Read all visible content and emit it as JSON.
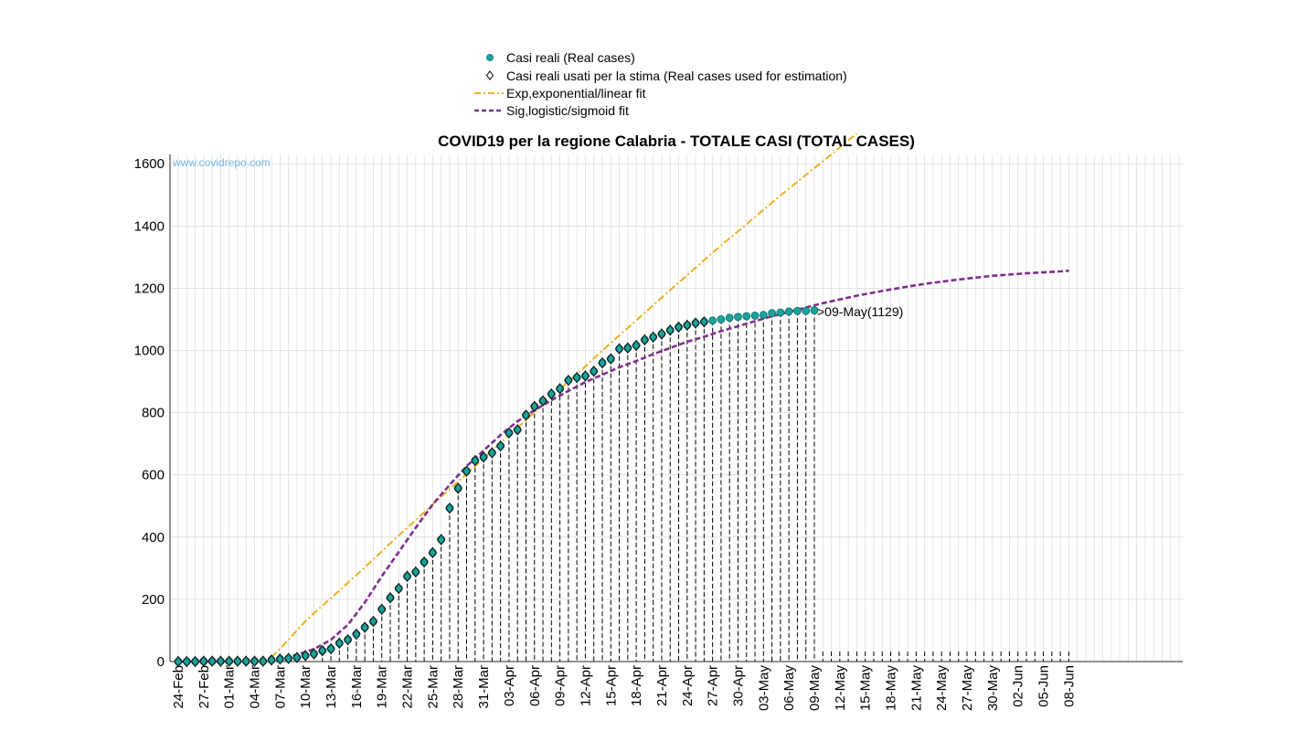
{
  "chart_data": {
    "type": "line",
    "title": "COVID19 per la regione Calabria - TOTALE CASI (TOTAL CASES)",
    "watermark": "www.covidrepo.com",
    "xlabel": "",
    "ylabel": "",
    "ylim": [
      0,
      1630
    ],
    "yticks": [
      0,
      200,
      400,
      600,
      800,
      1000,
      1200,
      1400,
      1600
    ],
    "grid": true,
    "legend_position": "top-center",
    "x_start_date": "24-Feb",
    "x_tick_labels": [
      "24-Feb",
      "27-Feb",
      "01-Mar",
      "04-Mar",
      "07-Mar",
      "10-Mar",
      "13-Mar",
      "16-Mar",
      "19-Mar",
      "22-Mar",
      "25-Mar",
      "28-Mar",
      "31-Mar",
      "03-Apr",
      "06-Apr",
      "09-Apr",
      "12-Apr",
      "15-Apr",
      "18-Apr",
      "21-Apr",
      "24-Apr",
      "27-Apr",
      "30-Apr",
      "03-May",
      "06-May",
      "09-May",
      "12-May",
      "15-May",
      "18-May",
      "21-May",
      "24-May",
      "27-May",
      "30-May",
      "02-Jun",
      "05-Jun",
      "08-Jun"
    ],
    "annotation": ">09-May(1129)",
    "colors": {
      "real": "#1aa39b",
      "sig": "#7e2f8e",
      "exp": "#edb120",
      "grid": "#dcdcdc"
    },
    "series": [
      {
        "name": "Casi reali (Real cases)",
        "marker": "circle",
        "values": [
          0,
          0,
          0,
          1,
          1,
          1,
          1,
          1,
          1,
          1,
          1,
          5,
          8,
          10,
          13,
          19,
          25,
          35,
          41,
          59,
          70,
          88,
          110,
          129,
          168,
          205,
          235,
          274,
          288,
          320,
          350,
          392,
          493,
          557,
          612,
          646,
          657,
          671,
          693,
          735,
          745,
          792,
          820,
          838,
          860,
          877,
          904,
          913,
          918,
          933,
          960,
          973,
          1005,
          1008,
          1016,
          1034,
          1043,
          1053,
          1065,
          1075,
          1081,
          1088,
          1092,
          1096,
          1100,
          1105,
          1108,
          1110,
          1112,
          1114,
          1120,
          1122,
          1125,
          1127,
          1127,
          1129
        ]
      },
      {
        "name": "Casi reali usati per la stima (Real cases used for estimation)",
        "marker": "diamond",
        "values": [
          0,
          0,
          0,
          1,
          1,
          1,
          1,
          1,
          1,
          1,
          1,
          5,
          8,
          10,
          13,
          19,
          25,
          35,
          41,
          59,
          70,
          88,
          110,
          129,
          168,
          205,
          235,
          274,
          288,
          320,
          350,
          392,
          493,
          557,
          612,
          646,
          657,
          671,
          693,
          735,
          745,
          792,
          820,
          838,
          860,
          877,
          904,
          913,
          918,
          933,
          960,
          973,
          1005,
          1008,
          1016,
          1034,
          1043,
          1053,
          1065,
          1075,
          1081,
          1088,
          1092
        ]
      },
      {
        "name": "Exp,exponential/linear fit",
        "style": "dash-dot",
        "x_days": [
          11,
          13,
          15,
          17,
          19,
          21,
          23,
          25,
          27,
          29,
          31,
          33,
          35,
          37,
          39,
          41,
          43,
          45,
          47,
          49,
          51,
          53,
          55,
          57,
          59,
          61,
          63,
          65,
          67,
          69,
          71,
          73,
          75,
          77,
          79,
          80
        ],
        "values": [
          13,
          70,
          130,
          180,
          228,
          278,
          328,
          380,
          430,
          480,
          530,
          578,
          628,
          678,
          728,
          776,
          826,
          876,
          924,
          974,
          1024,
          1072,
          1121,
          1170,
          1218,
          1266,
          1314,
          1360,
          1406,
          1452,
          1498,
          1542,
          1586,
          1630,
          1675,
          1697
        ]
      },
      {
        "name": "Sig,logistic/sigmoid fit",
        "style": "dashed",
        "x_days": [
          0,
          4,
          8,
          10,
          12,
          14,
          16,
          18,
          20,
          22,
          24,
          26,
          28,
          30,
          32,
          34,
          36,
          38,
          40,
          42,
          44,
          46,
          48,
          50,
          52,
          54,
          56,
          58,
          60,
          62,
          64,
          66,
          68,
          70,
          72,
          74,
          76,
          78,
          80,
          84,
          88,
          92,
          96,
          100,
          104,
          105
        ],
        "values": [
          0,
          0,
          1,
          4,
          10,
          22,
          40,
          70,
          118,
          190,
          274,
          352,
          430,
          505,
          568,
          628,
          678,
          728,
          772,
          808,
          840,
          870,
          898,
          922,
          946,
          966,
          988,
          1008,
          1028,
          1044,
          1062,
          1078,
          1094,
          1110,
          1124,
          1138,
          1152,
          1164,
          1176,
          1196,
          1214,
          1228,
          1240,
          1248,
          1254,
          1256
        ]
      }
    ]
  }
}
